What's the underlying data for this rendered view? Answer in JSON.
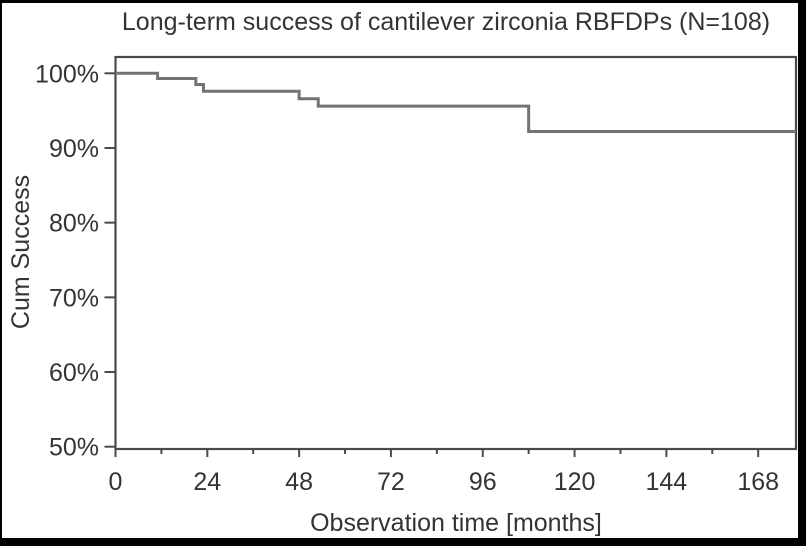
{
  "chart_data": {
    "type": "line",
    "subtype": "kaplan-meier-step-survival",
    "title": "Long-term success of cantilever zirconia RBFDPs (N=108)",
    "xlabel": "Observation time [months]",
    "ylabel": "Cum Success",
    "n": 108,
    "xlim_months": [
      0,
      178
    ],
    "ylim_percent": [
      50,
      102
    ],
    "x_major_ticks": [
      0,
      24,
      48,
      72,
      96,
      120,
      144,
      168
    ],
    "x_minor_tick_interval_months": 12,
    "y_ticks": [
      {
        "value": 100,
        "label": "100%"
      },
      {
        "value": 90,
        "label": "90%"
      },
      {
        "value": 80,
        "label": "80%"
      },
      {
        "value": 70,
        "label": "70%"
      },
      {
        "value": 60,
        "label": "60%"
      },
      {
        "value": 50,
        "label": "50%"
      }
    ],
    "grid": false,
    "legend": false,
    "series": [
      {
        "name": "Cumulative success",
        "type": "step",
        "steps": [
          {
            "t_months": 0,
            "percent": 100
          },
          {
            "t_months": 11,
            "percent": 99.3
          },
          {
            "t_months": 21,
            "percent": 98.5
          },
          {
            "t_months": 23,
            "percent": 97.6
          },
          {
            "t_months": 48,
            "percent": 96.6
          },
          {
            "t_months": 53,
            "percent": 95.6
          },
          {
            "t_months": 108,
            "percent": 92.2
          }
        ],
        "t_end_months": 178
      }
    ],
    "colors": {
      "curve": "#737373",
      "axis": "#4a4a4a",
      "text": "#343434",
      "background": "#ffffff",
      "outer_border": "#000000"
    }
  }
}
